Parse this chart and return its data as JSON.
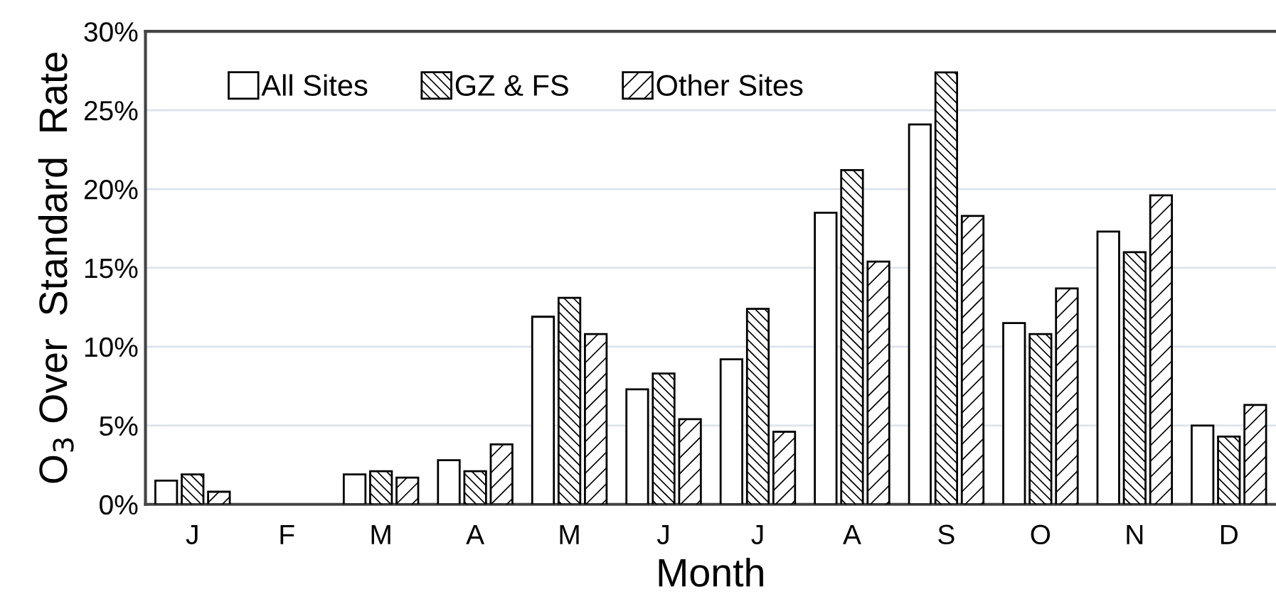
{
  "chart_data": {
    "type": "bar",
    "xlabel": "Month",
    "ylabel": "O$_{3}$ Over  Standard  Rate",
    "categories": [
      "J",
      "F",
      "M",
      "A",
      "M",
      "J",
      "J",
      "A",
      "S",
      "O",
      "N",
      "D"
    ],
    "series": [
      {
        "name": "All Sites",
        "color": "#ffffff",
        "values": [
          1.5,
          null,
          1.9,
          2.8,
          11.9,
          7.3,
          9.2,
          18.5,
          24.1,
          11.5,
          17.3,
          5.0
        ]
      },
      {
        "name": "GZ & FS",
        "color": "#000000",
        "values": [
          1.9,
          null,
          2.1,
          2.1,
          13.1,
          8.3,
          12.4,
          21.2,
          27.4,
          10.8,
          16.0,
          4.3
        ]
      },
      {
        "name": "Other Sites",
        "color": "#000000",
        "values": [
          0.8,
          null,
          1.7,
          3.8,
          10.8,
          5.4,
          4.6,
          15.4,
          18.3,
          13.7,
          19.6,
          6.3
        ]
      }
    ],
    "ylim": [
      0,
      30
    ],
    "yticks": [
      {
        "value": 0,
        "label": "0%"
      },
      {
        "value": 5,
        "label": "5%"
      },
      {
        "value": 10,
        "label": "10%"
      },
      {
        "value": 15,
        "label": "15%"
      },
      {
        "value": 20,
        "label": "20%"
      },
      {
        "value": 25,
        "label": "25%"
      },
      {
        "value": 30,
        "label": "30%"
      }
    ],
    "grid": "y",
    "legend": "top left"
  }
}
